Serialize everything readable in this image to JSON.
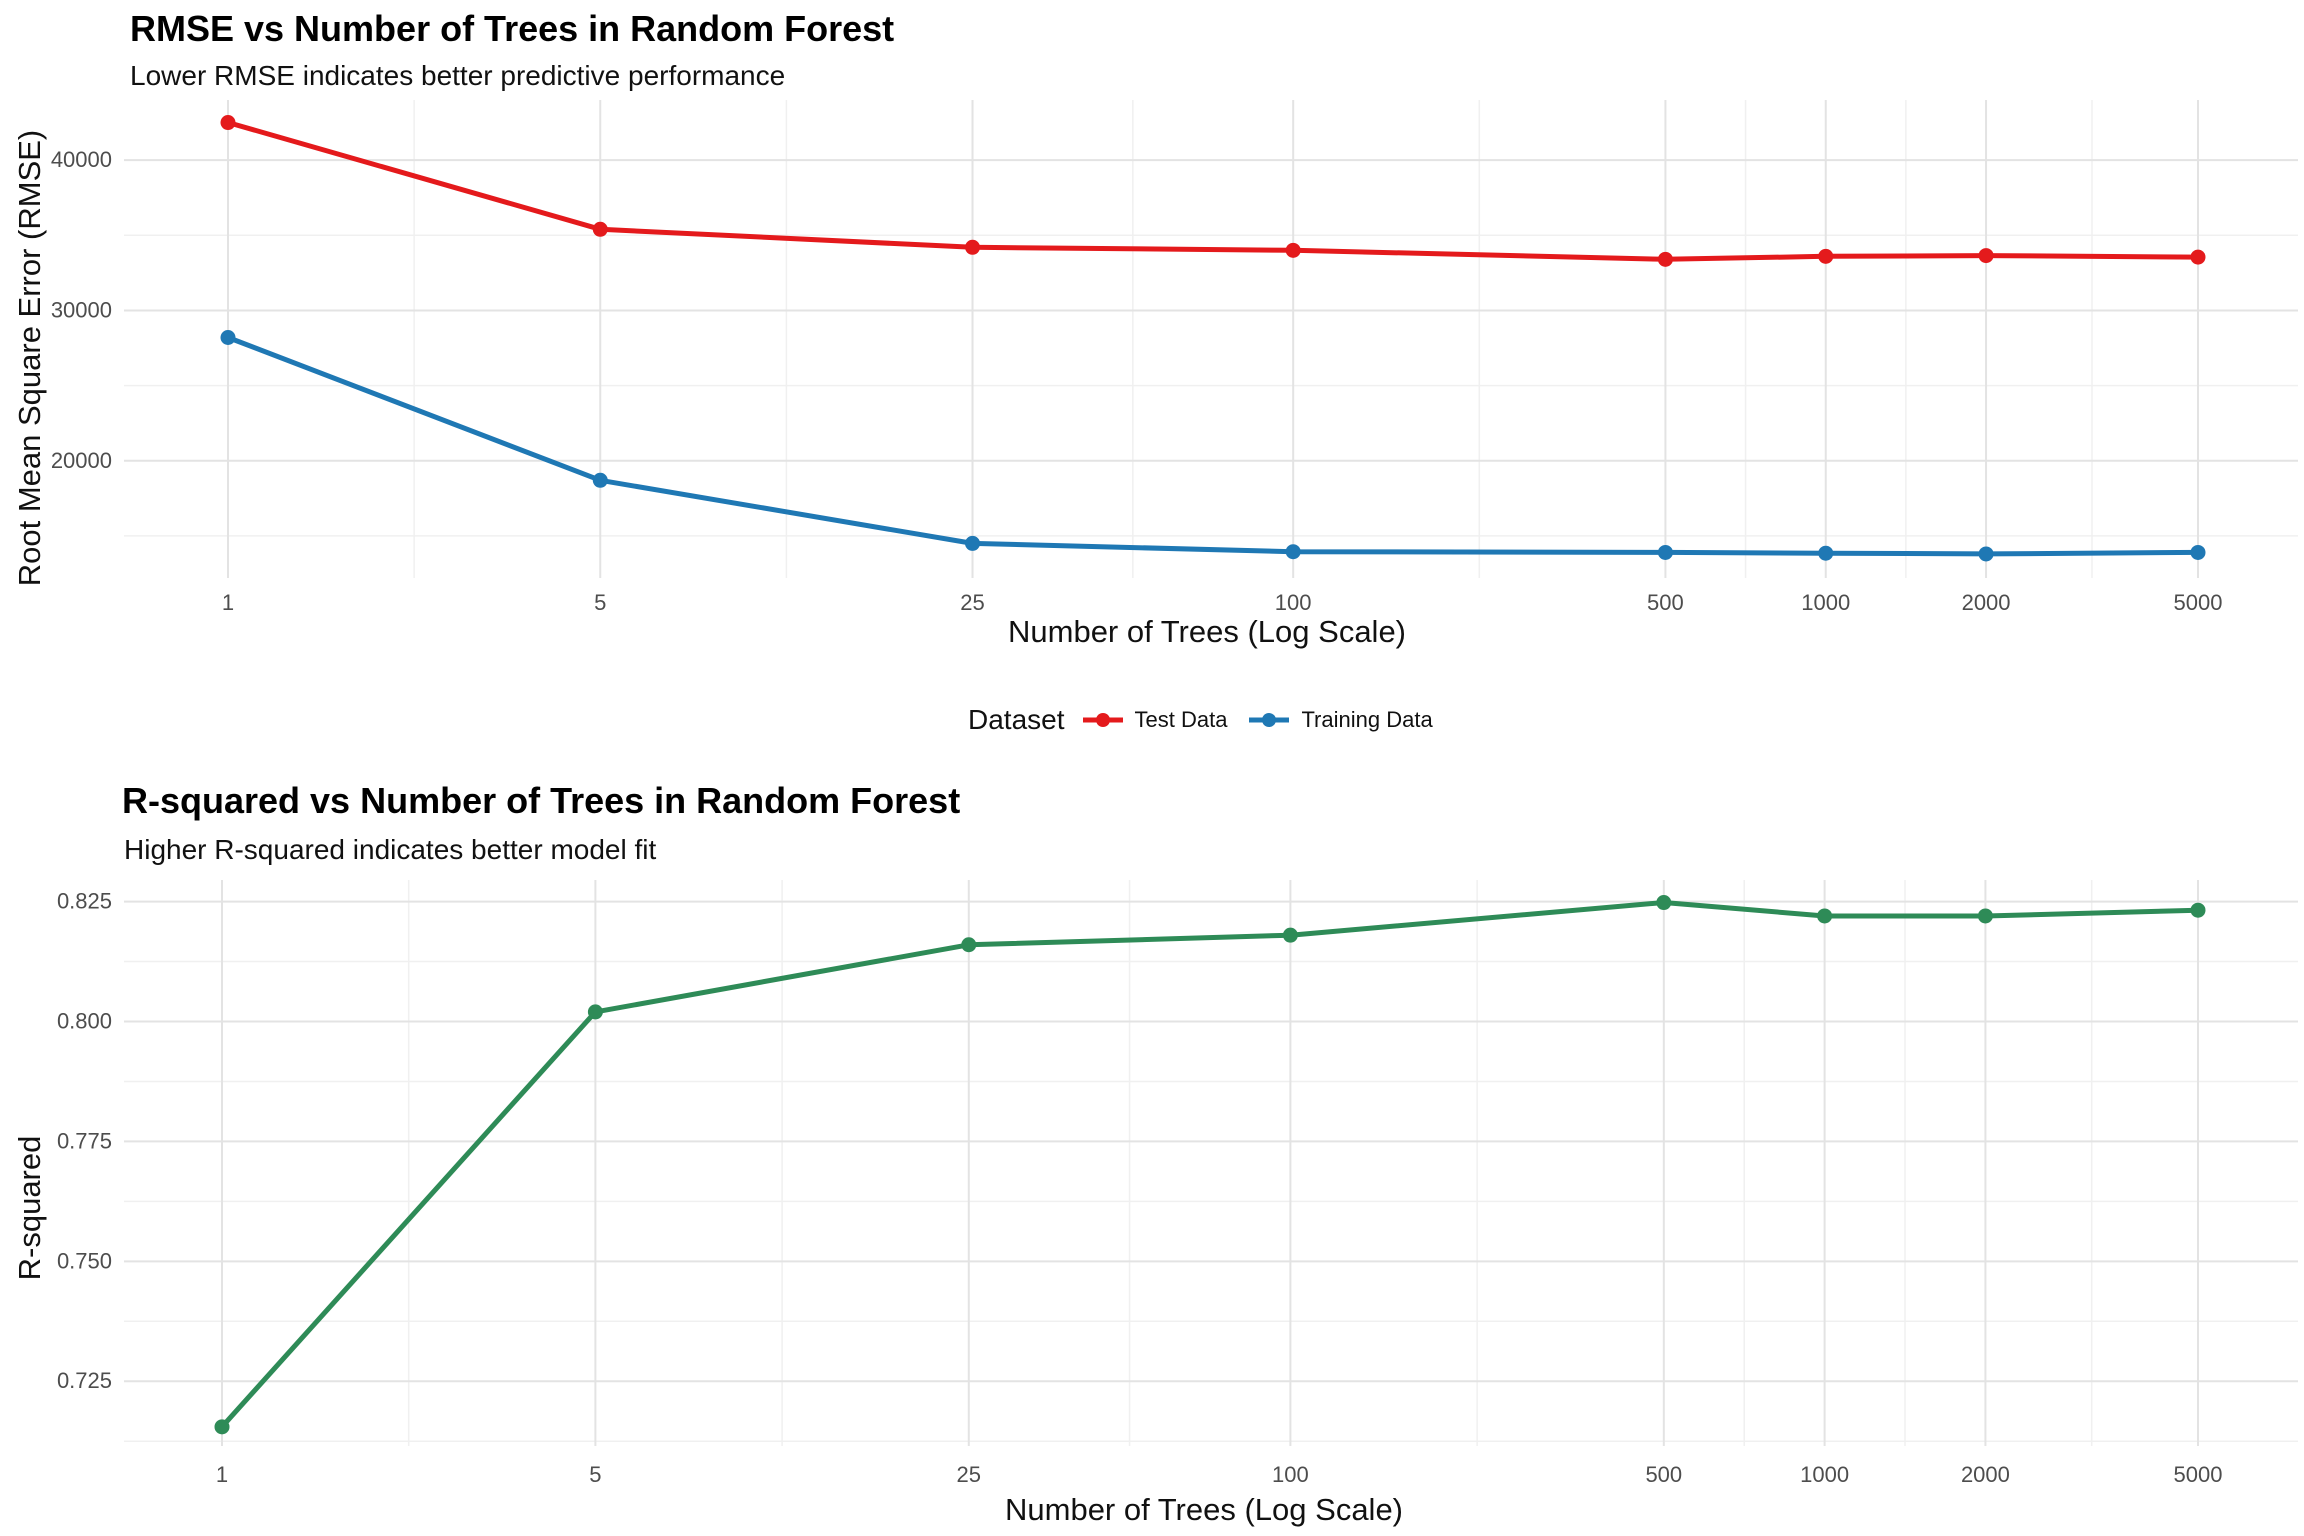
{
  "colors": {
    "test": "#E41A1C",
    "training": "#1F78B4",
    "r2": "#2E8B57",
    "grid_major": "#E3E3E3",
    "grid_minor": "#F0F0F0"
  },
  "legend": {
    "title": "Dataset",
    "items": [
      {
        "label": "Test Data",
        "color": "#E41A1C"
      },
      {
        "label": "Training Data",
        "color": "#1F78B4"
      }
    ]
  },
  "chart_data": [
    {
      "type": "line",
      "title": "RMSE vs Number of Trees in Random Forest",
      "subtitle": "Lower RMSE indicates better predictive performance",
      "xlabel": "Number of Trees (Log Scale)",
      "ylabel": "Root Mean Square Error (RMSE)",
      "x_scale": "log",
      "x": [
        1,
        5,
        25,
        100,
        500,
        1000,
        2000,
        5000
      ],
      "x_ticks": [
        "1",
        "5",
        "25",
        "100",
        "500",
        "1000",
        "2000",
        "5000"
      ],
      "y_ticks": [
        "20000",
        "30000",
        "40000"
      ],
      "ylim": [
        12200,
        44000
      ],
      "grid": true,
      "legend_position": "bottom",
      "series": [
        {
          "name": "Test Data",
          "color": "#E41A1C",
          "values": [
            42500,
            35400,
            34200,
            34000,
            33400,
            33600,
            33650,
            33550
          ]
        },
        {
          "name": "Training Data",
          "color": "#1F78B4",
          "values": [
            28200,
            18700,
            14500,
            13950,
            13900,
            13850,
            13800,
            13900
          ]
        }
      ]
    },
    {
      "type": "line",
      "title": "R-squared vs Number of Trees in Random Forest",
      "subtitle": "Higher R-squared indicates better model fit",
      "xlabel": "Number of Trees (Log Scale)",
      "ylabel": "R-squared",
      "x_scale": "log",
      "x": [
        1,
        5,
        25,
        100,
        500,
        1000,
        2000,
        5000
      ],
      "x_ticks": [
        "1",
        "5",
        "25",
        "100",
        "500",
        "1000",
        "2000",
        "5000"
      ],
      "y_ticks": [
        "0.725",
        "0.750",
        "0.775",
        "0.800",
        "0.825"
      ],
      "ylim": [
        0.7115,
        0.8295
      ],
      "grid": true,
      "series": [
        {
          "color": "#2E8B57",
          "values": [
            0.7155,
            0.802,
            0.816,
            0.818,
            0.8248,
            0.822,
            0.822,
            0.8232
          ]
        }
      ]
    }
  ]
}
